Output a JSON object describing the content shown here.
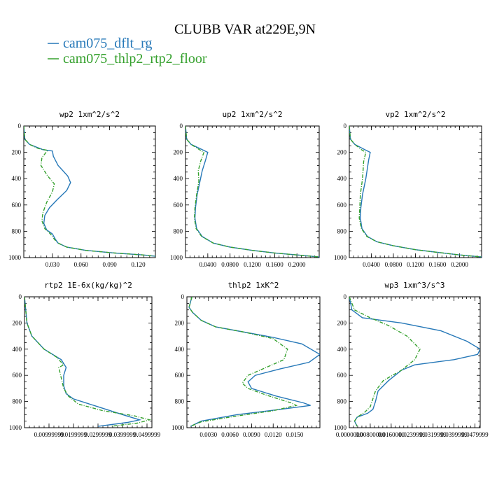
{
  "chart_data": {
    "title": "CLUBB VAR at229E,9N",
    "legend": [
      {
        "name": "cam075_dflt_rg",
        "color": "#2678b8",
        "dash": ""
      },
      {
        "name": "cam075_thlp2_rtp2_floor",
        "color": "#34a02c",
        "dash": "5,2,1,2"
      }
    ],
    "panels": [
      {
        "type": "line",
        "title": "wp2  1xm^2/s^2",
        "xlim": [
          0,
          0.138
        ],
        "ylim": [
          1000,
          0
        ],
        "xticks": [
          0.03,
          0.06,
          0.09,
          0.12
        ],
        "xtick_labels": [
          "0.030",
          "0.060",
          "0.090",
          "0.120"
        ],
        "yticks": [
          0,
          200,
          400,
          600,
          800,
          1000
        ],
        "ytick_labels": [
          "0",
          "200",
          "400",
          "600",
          "800",
          "1000"
        ],
        "series": [
          {
            "name": "cam075_dflt_rg",
            "x": [
              0,
              0.001,
              0.006,
              0.02,
              0.03,
              0.031,
              0.036,
              0.046,
              0.049,
              0.045,
              0.035,
              0.027,
              0.022,
              0.021,
              0.024,
              0.03,
              0.033,
              0.036,
              0.045,
              0.065,
              0.095,
              0.125,
              0.138
            ],
            "y": [
              0,
              100,
              140,
              180,
              190,
              230,
              300,
              380,
              430,
              490,
              560,
              620,
              680,
              740,
              790,
              820,
              860,
              890,
              920,
              945,
              965,
              980,
              990
            ]
          },
          {
            "name": "cam075_thlp2_rtp2_floor",
            "x": [
              0,
              0.001,
              0.006,
              0.015,
              0.025,
              0.019,
              0.018,
              0.025,
              0.032,
              0.03,
              0.024,
              0.02,
              0.019,
              0.022,
              0.028,
              0.032,
              0.036,
              0.045,
              0.065,
              0.095,
              0.125,
              0.138
            ],
            "y": [
              0,
              100,
              140,
              170,
              185,
              240,
              300,
              380,
              440,
              500,
              580,
              660,
              720,
              780,
              820,
              860,
              890,
              920,
              945,
              965,
              980,
              990
            ]
          }
        ]
      },
      {
        "type": "line",
        "title": "up2  1xm^2/s^2",
        "xlim": [
          0,
          0.24
        ],
        "ylim": [
          1000,
          0
        ],
        "xticks": [
          0.04,
          0.08,
          0.12,
          0.16,
          0.2
        ],
        "xtick_labels": [
          "0.0400",
          "0.0800",
          "0.1200",
          "0.1600",
          "0.2000"
        ],
        "yticks": [
          0,
          200,
          400,
          600,
          800,
          1000
        ],
        "ytick_labels": [
          "0",
          "200",
          "400",
          "600",
          "800",
          "1000"
        ],
        "series": [
          {
            "name": "cam075_dflt_rg",
            "x": [
              0,
              0.002,
              0.01,
              0.03,
              0.04,
              0.036,
              0.03,
              0.026,
              0.021,
              0.018,
              0.017,
              0.02,
              0.03,
              0.05,
              0.08,
              0.12,
              0.16,
              0.2,
              0.24
            ],
            "y": [
              0,
              100,
              140,
              180,
              200,
              260,
              340,
              420,
              520,
              620,
              700,
              780,
              840,
              890,
              920,
              945,
              965,
              980,
              995
            ]
          },
          {
            "name": "cam075_thlp2_rtp2_floor",
            "x": [
              0,
              0.002,
              0.01,
              0.025,
              0.033,
              0.027,
              0.023,
              0.024,
              0.02,
              0.017,
              0.016,
              0.019,
              0.029,
              0.05,
              0.08,
              0.12,
              0.16,
              0.2,
              0.24
            ],
            "y": [
              0,
              100,
              140,
              180,
              200,
              270,
              340,
              420,
              520,
              620,
              700,
              780,
              840,
              890,
              920,
              945,
              965,
              980,
              995
            ]
          }
        ]
      },
      {
        "type": "line",
        "title": "vp2  1xm^2/s^2",
        "xlim": [
          0,
          0.24
        ],
        "ylim": [
          1000,
          0
        ],
        "xticks": [
          0.04,
          0.08,
          0.12,
          0.16,
          0.2
        ],
        "xtick_labels": [
          "0.0400",
          "0.0800",
          "0.1200",
          "0.1600",
          "0.2000"
        ],
        "yticks": [
          0,
          200,
          400,
          600,
          800,
          1000
        ],
        "ytick_labels": [
          "0",
          "200",
          "400",
          "600",
          "800",
          "1000"
        ],
        "series": [
          {
            "name": "cam075_dflt_rg",
            "x": [
              0,
              0.002,
              0.01,
              0.028,
              0.038,
              0.035,
              0.03,
              0.024,
              0.021,
              0.02,
              0.023,
              0.033,
              0.05,
              0.08,
              0.12,
              0.16,
              0.2,
              0.24
            ],
            "y": [
              0,
              100,
              140,
              180,
              200,
              260,
              400,
              520,
              620,
              700,
              780,
              840,
              880,
              910,
              940,
              960,
              980,
              995
            ]
          },
          {
            "name": "cam075_thlp2_rtp2_floor",
            "x": [
              0,
              0.002,
              0.01,
              0.022,
              0.03,
              0.026,
              0.024,
              0.02,
              0.019,
              0.018,
              0.022,
              0.032,
              0.05,
              0.08,
              0.12,
              0.16,
              0.2,
              0.24
            ],
            "y": [
              0,
              100,
              140,
              180,
              200,
              270,
              400,
              520,
              620,
              700,
              780,
              840,
              880,
              910,
              940,
              960,
              980,
              995
            ]
          }
        ]
      },
      {
        "type": "line",
        "title": "rtp2  1E-6x(kg/kg)^2",
        "xlim": [
          0,
          0.052
        ],
        "ylim": [
          1000,
          0
        ],
        "xticks": [
          0.01,
          0.02,
          0.03,
          0.04,
          0.05
        ],
        "xtick_labels": [
          "0.00999999",
          "0.0199999",
          "0.0299999",
          "0.0399999",
          "0.0499999"
        ],
        "yticks": [
          0,
          200,
          400,
          600,
          800,
          1000
        ],
        "ytick_labels": [
          "0",
          "200",
          "400",
          "600",
          "800",
          "1000"
        ],
        "series": [
          {
            "name": "cam075_dflt_rg",
            "x": [
              0,
              0.001,
              0.003,
              0.008,
              0.015,
              0.017,
              0.016,
              0.016,
              0.017,
              0.02,
              0.03,
              0.04,
              0.047,
              0.042,
              0.03
            ],
            "y": [
              0,
              200,
              300,
              400,
              480,
              540,
              600,
              680,
              740,
              780,
              840,
              900,
              940,
              960,
              990
            ]
          },
          {
            "name": "cam075_thlp2_rtp2_floor",
            "x": [
              0,
              0.001,
              0.003,
              0.008,
              0.013,
              0.016,
              0.014,
              0.015,
              0.016,
              0.018,
              0.022,
              0.032,
              0.045,
              0.051,
              0.046,
              0.035
            ],
            "y": [
              0,
              200,
              300,
              400,
              460,
              520,
              540,
              620,
              700,
              760,
              820,
              870,
              910,
              940,
              965,
              990
            ]
          }
        ]
      },
      {
        "type": "line",
        "title": "thlp2  1xK^2",
        "xlim": [
          0,
          0.0185
        ],
        "ylim": [
          1000,
          0
        ],
        "xticks": [
          0.003,
          0.006,
          0.009,
          0.012,
          0.015
        ],
        "xtick_labels": [
          "0.0030",
          "0.0060",
          "0.0090",
          "0.0120",
          "0.0150"
        ],
        "yticks": [
          0,
          200,
          400,
          600,
          800,
          1000
        ],
        "ytick_labels": [
          "0",
          "200",
          "400",
          "600",
          "800",
          "1000"
        ],
        "series": [
          {
            "name": "cam075_dflt_rg",
            "x": [
              0.0007,
              0.0003,
              0.0008,
              0.002,
              0.004,
              0.008,
              0.012,
              0.016,
              0.0185,
              0.017,
              0.013,
              0.0095,
              0.0085,
              0.009,
              0.0125,
              0.0162,
              0.0172,
              0.013,
              0.007,
              0.002,
              0.0005
            ],
            "y": [
              0,
              80,
              120,
              180,
              230,
              270,
              310,
              360,
              440,
              500,
              550,
              600,
              650,
              700,
              760,
              810,
              830,
              860,
              900,
              950,
              990
            ]
          },
          {
            "name": "cam075_thlp2_rtp2_floor",
            "x": [
              0.0007,
              0.0003,
              0.0008,
              0.002,
              0.004,
              0.008,
              0.012,
              0.014,
              0.0135,
              0.011,
              0.0085,
              0.0077,
              0.0085,
              0.011,
              0.0145,
              0.0152,
              0.012,
              0.007,
              0.002,
              0.0005
            ],
            "y": [
              0,
              80,
              120,
              180,
              230,
              270,
              320,
              400,
              480,
              540,
              600,
              660,
              700,
              750,
              810,
              830,
              870,
              910,
              955,
              990
            ]
          }
        ]
      },
      {
        "type": "line",
        "title": "wp3  1xm^3/s^3",
        "xlim": [
          0,
          0.05
        ],
        "ylim": [
          1000,
          0
        ],
        "xticks": [
          0.0,
          0.008,
          0.016,
          0.024,
          0.032,
          0.04,
          0.048
        ],
        "xtick_labels": [
          "0.0000000",
          "0.00800000",
          "0.0160000",
          "0.0239999",
          "0.0319999",
          "0.0399999",
          "0.0479999"
        ],
        "yticks": [
          0,
          200,
          400,
          600,
          800,
          1000
        ],
        "ytick_labels": [
          "0",
          "200",
          "400",
          "600",
          "800",
          "1000"
        ],
        "series": [
          {
            "name": "cam075_dflt_rg",
            "x": [
              0,
              0.001,
              0.005,
              0.02,
              0.035,
              0.045,
              0.05,
              0.049,
              0.04,
              0.025,
              0.02,
              0.015,
              0.011,
              0.01,
              0.009,
              0.007,
              0.003,
              0.002,
              0.003
            ],
            "y": [
              0,
              100,
              160,
              200,
              260,
              340,
              400,
              440,
              480,
              520,
              560,
              640,
              720,
              800,
              860,
              890,
              920,
              950,
              990
            ]
          },
          {
            "name": "cam075_thlp2_rtp2_floor",
            "x": [
              0,
              0.002,
              0.008,
              0.015,
              0.022,
              0.027,
              0.025,
              0.02,
              0.013,
              0.01,
              0.009,
              0.008,
              0.006,
              0.003,
              0.002,
              0.003
            ],
            "y": [
              0,
              100,
              160,
              220,
              300,
              400,
              480,
              560,
              640,
              720,
              780,
              840,
              880,
              920,
              950,
              990
            ]
          }
        ]
      }
    ]
  }
}
